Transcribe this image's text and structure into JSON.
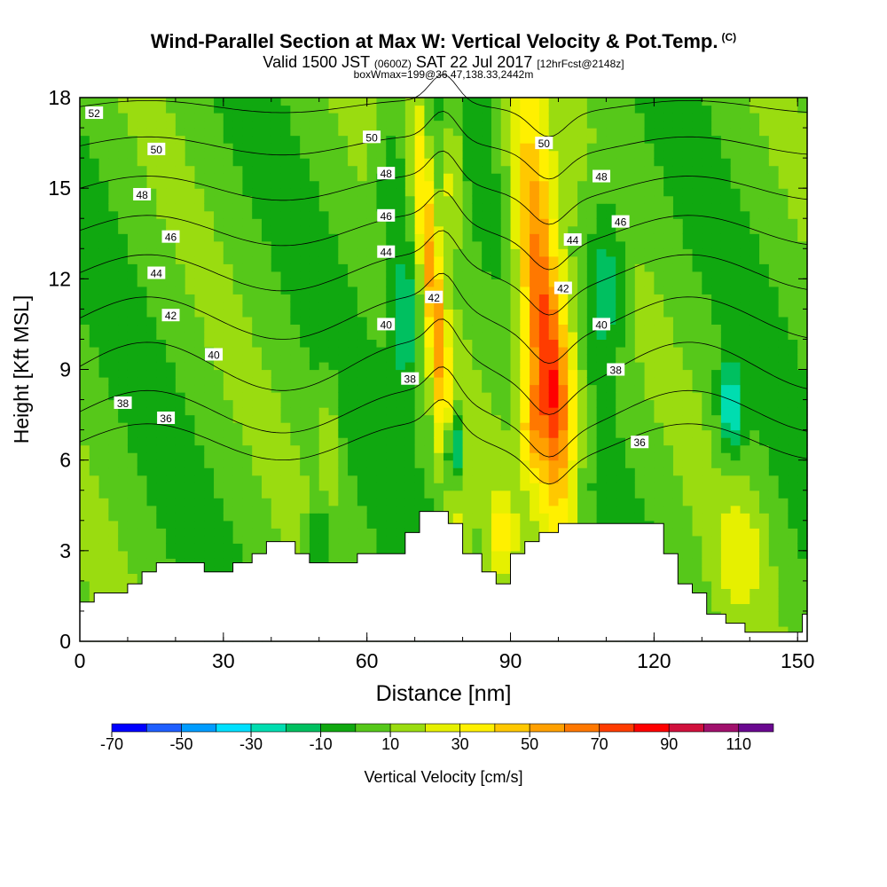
{
  "header": {
    "title": "Wind-Parallel Section at Max W: Vertical Velocity & Pot.Temp.",
    "copyright": "(C)",
    "valid_prefix": "Valid 1500 JST",
    "valid_z": "(0600Z)",
    "valid_date": "SAT 22 Jul 2017",
    "valid_fcst": "[12hrFcst@2148z]",
    "box_info": "boxWmax=199@36.47,138.33,2442m"
  },
  "chart_data": {
    "type": "heatmap",
    "xlabel": "Distance [nm]",
    "ylabel": "Height [Kft MSL]",
    "xlim": [
      0,
      152
    ],
    "ylim": [
      0,
      18
    ],
    "x_ticks": [
      0,
      30,
      60,
      90,
      120,
      150
    ],
    "y_ticks": [
      0,
      3,
      6,
      9,
      12,
      15,
      18
    ],
    "colorbar": {
      "label": "Vertical Velocity [cm/s]",
      "tick_labels": [
        "-70",
        "-50",
        "-30",
        "-10",
        "10",
        "30",
        "50",
        "70",
        "90",
        "110"
      ],
      "bins": [
        -70,
        -60,
        -50,
        -40,
        -30,
        -20,
        -10,
        0,
        10,
        20,
        30,
        40,
        50,
        60,
        70,
        80,
        90,
        100,
        110,
        120
      ],
      "colors": [
        "#0000ff",
        "#1f5fff",
        "#009cff",
        "#00e0ff",
        "#00ddb0",
        "#00c060",
        "#10a810",
        "#56c81a",
        "#9adc10",
        "#e6f000",
        "#fff000",
        "#ffc800",
        "#ffa000",
        "#ff7800",
        "#ff3c00",
        "#ff0000",
        "#d0103c",
        "#a0106c",
        "#6a0890"
      ]
    },
    "terrain_kft": [
      [
        0,
        1.3
      ],
      [
        3,
        1.3
      ],
      [
        3,
        1.6
      ],
      [
        10,
        1.6
      ],
      [
        10,
        1.9
      ],
      [
        13,
        1.9
      ],
      [
        13,
        2.3
      ],
      [
        16,
        2.3
      ],
      [
        16,
        2.6
      ],
      [
        26,
        2.6
      ],
      [
        26,
        2.3
      ],
      [
        32,
        2.3
      ],
      [
        32,
        2.6
      ],
      [
        36,
        2.6
      ],
      [
        36,
        2.9
      ],
      [
        39,
        2.9
      ],
      [
        39,
        3.3
      ],
      [
        45,
        3.3
      ],
      [
        45,
        2.9
      ],
      [
        48,
        2.9
      ],
      [
        48,
        2.6
      ],
      [
        58,
        2.6
      ],
      [
        58,
        2.9
      ],
      [
        68,
        2.9
      ],
      [
        68,
        3.6
      ],
      [
        71,
        3.6
      ],
      [
        71,
        4.3
      ],
      [
        77,
        4.3
      ],
      [
        77,
        3.9
      ],
      [
        80,
        3.9
      ],
      [
        80,
        2.9
      ],
      [
        84,
        2.9
      ],
      [
        84,
        2.3
      ],
      [
        87,
        2.3
      ],
      [
        87,
        1.9
      ],
      [
        90,
        1.9
      ],
      [
        90,
        2.9
      ],
      [
        93,
        2.9
      ],
      [
        93,
        3.3
      ],
      [
        96,
        3.3
      ],
      [
        96,
        3.6
      ],
      [
        100,
        3.6
      ],
      [
        100,
        3.9
      ],
      [
        122,
        3.9
      ],
      [
        122,
        2.9
      ],
      [
        125,
        2.9
      ],
      [
        125,
        1.9
      ],
      [
        128,
        1.9
      ],
      [
        128,
        1.6
      ],
      [
        131,
        1.6
      ],
      [
        131,
        0.9
      ],
      [
        135,
        0.9
      ],
      [
        135,
        0.6
      ],
      [
        139,
        0.6
      ],
      [
        139,
        0.3
      ],
      [
        151,
        0.3
      ],
      [
        151,
        0.9
      ],
      [
        152,
        0.9
      ]
    ],
    "theta_contours": [
      {
        "label": "36",
        "h0": 6.6,
        "amp": 0.6
      },
      {
        "label": "38",
        "h0": 7.6,
        "amp": 0.7
      },
      {
        "label": "40",
        "h0": 9.1,
        "amp": 0.8
      },
      {
        "label": "42",
        "h0": 10.7,
        "amp": 0.7
      },
      {
        "label": "44",
        "h0": 12.2,
        "amp": 0.6
      },
      {
        "label": "46",
        "h0": 13.6,
        "amp": 0.5
      },
      {
        "label": "48",
        "h0": 15.0,
        "amp": 0.4
      },
      {
        "label": "50",
        "h0": 16.4,
        "amp": 0.3
      },
      {
        "label": "52",
        "h0": 17.7,
        "amp": 0.2
      }
    ],
    "contour_labels": [
      {
        "text": "52",
        "x": 3,
        "y": 17.5
      },
      {
        "text": "50",
        "x": 16,
        "y": 16.3
      },
      {
        "text": "50",
        "x": 61,
        "y": 16.7
      },
      {
        "text": "50",
        "x": 97,
        "y": 16.5
      },
      {
        "text": "48",
        "x": 13,
        "y": 14.8
      },
      {
        "text": "48",
        "x": 64,
        "y": 15.5
      },
      {
        "text": "48",
        "x": 109,
        "y": 15.4
      },
      {
        "text": "46",
        "x": 19,
        "y": 13.4
      },
      {
        "text": "46",
        "x": 64,
        "y": 14.1
      },
      {
        "text": "46",
        "x": 113,
        "y": 13.9
      },
      {
        "text": "44",
        "x": 16,
        "y": 12.2
      },
      {
        "text": "44",
        "x": 64,
        "y": 12.9
      },
      {
        "text": "44",
        "x": 103,
        "y": 13.3
      },
      {
        "text": "42",
        "x": 19,
        "y": 10.8
      },
      {
        "text": "42",
        "x": 74,
        "y": 11.4
      },
      {
        "text": "42",
        "x": 101,
        "y": 11.7
      },
      {
        "text": "40",
        "x": 28,
        "y": 9.5
      },
      {
        "text": "40",
        "x": 64,
        "y": 10.5
      },
      {
        "text": "40",
        "x": 109,
        "y": 10.5
      },
      {
        "text": "38",
        "x": 9,
        "y": 7.9
      },
      {
        "text": "38",
        "x": 69,
        "y": 8.7
      },
      {
        "text": "38",
        "x": 112,
        "y": 9.0
      },
      {
        "text": "36",
        "x": 18,
        "y": 7.4
      },
      {
        "text": "36",
        "x": 117,
        "y": 6.6
      }
    ]
  }
}
